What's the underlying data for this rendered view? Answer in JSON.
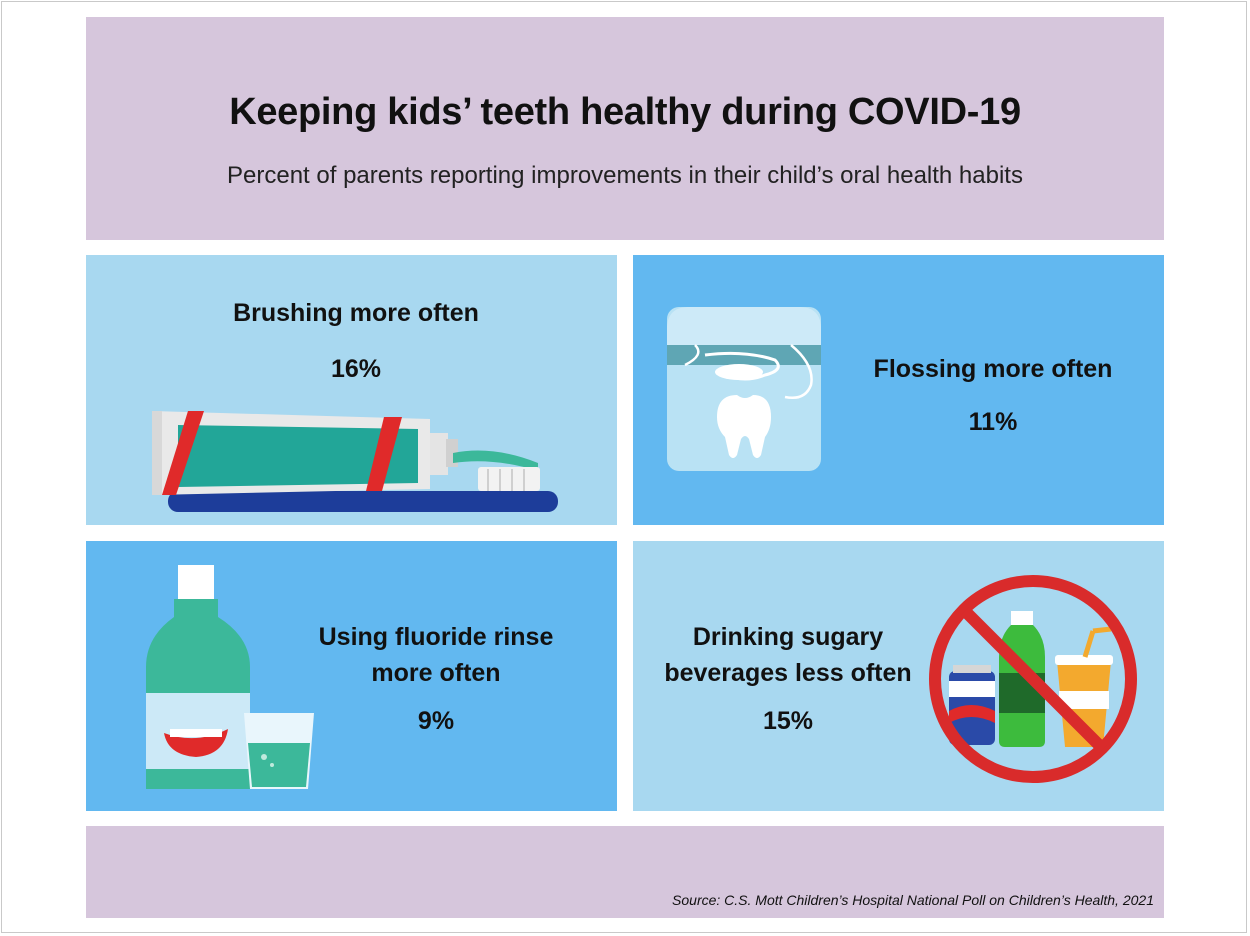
{
  "title": "Keeping kids’ teeth healthy during COVID-19",
  "subtitle": "Percent of parents reporting improvements in their child’s oral health habits",
  "items": [
    {
      "label": "Brushing more often",
      "value": "16%",
      "icon": "toothpaste-toothbrush-icon"
    },
    {
      "label": "Flossing more often",
      "value": "11%",
      "icon": "floss-container-icon"
    },
    {
      "label_line1": "Using fluoride rinse",
      "label_line2": "more often",
      "value": "9%",
      "icon": "mouthwash-icon"
    },
    {
      "label_line1": "Drinking sugary",
      "label_line2": "beverages less often",
      "value": "15%",
      "icon": "no-sugary-drinks-icon"
    }
  ],
  "source": "Source: C.S. Mott Children’s Hospital National Poll on Children’s Health, 2021",
  "colors": {
    "header_bg": "#d6c6dc",
    "light_blue": "#a8d8f0",
    "medium_blue": "#62b8f0",
    "teal": "#3cb89a",
    "red": "#d92b2b"
  }
}
